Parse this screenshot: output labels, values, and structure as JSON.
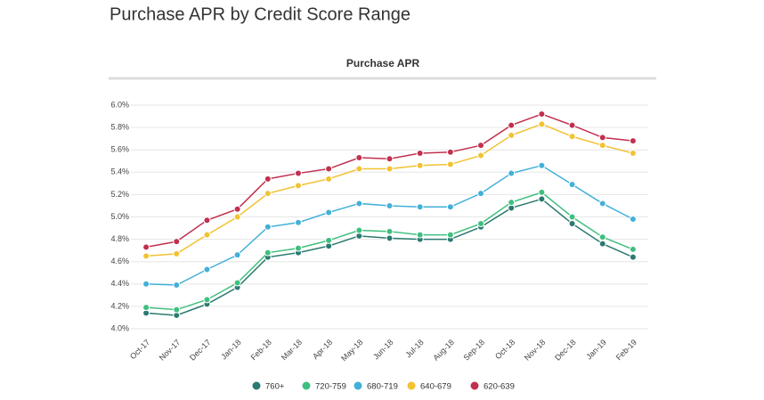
{
  "chart_data": {
    "type": "line",
    "title": "Purchase APR by Credit Score Range",
    "subtitle": "Purchase APR",
    "categories": [
      "Oct-17",
      "Nov-17",
      "Dec-17",
      "Jan-18",
      "Feb-18",
      "Mar-18",
      "Apr-18",
      "May-18",
      "Jun-18",
      "Jul-18",
      "Aug-18",
      "Sep-18",
      "Oct-18",
      "Nov-18",
      "Dec-18",
      "Jan-19",
      "Feb-19"
    ],
    "series": [
      {
        "name": "760+",
        "color": "#2b7a70",
        "values": [
          4.14,
          4.12,
          4.22,
          4.37,
          4.64,
          4.68,
          4.74,
          4.83,
          4.81,
          4.8,
          4.8,
          4.91,
          5.08,
          5.16,
          4.94,
          4.76,
          4.64
        ]
      },
      {
        "name": "720-759",
        "color": "#3fbf7f",
        "values": [
          4.19,
          4.17,
          4.26,
          4.41,
          4.68,
          4.72,
          4.79,
          4.88,
          4.87,
          4.84,
          4.84,
          4.94,
          5.13,
          5.22,
          5.0,
          4.82,
          4.71
        ]
      },
      {
        "name": "680-719",
        "color": "#42b0d8",
        "values": [
          4.4,
          4.39,
          4.53,
          4.66,
          4.91,
          4.95,
          5.04,
          5.12,
          5.1,
          5.09,
          5.09,
          5.21,
          5.39,
          5.46,
          5.29,
          5.12,
          4.98
        ]
      },
      {
        "name": "640-679",
        "color": "#f1c232",
        "values": [
          4.65,
          4.67,
          4.84,
          5.0,
          5.21,
          5.28,
          5.34,
          5.43,
          5.43,
          5.46,
          5.47,
          5.55,
          5.73,
          5.83,
          5.72,
          5.64,
          5.57
        ]
      },
      {
        "name": "620-639",
        "color": "#c2304f",
        "values": [
          4.73,
          4.78,
          4.97,
          5.07,
          5.34,
          5.39,
          5.43,
          5.53,
          5.52,
          5.57,
          5.58,
          5.64,
          5.82,
          5.92,
          5.82,
          5.71,
          5.68
        ]
      }
    ],
    "ylim": [
      4.0,
      6.0
    ],
    "yticks": [
      {
        "value": 4.0,
        "label": "4.0%"
      },
      {
        "value": 4.2,
        "label": "4.2%"
      },
      {
        "value": 4.4,
        "label": "4.4%"
      },
      {
        "value": 4.6,
        "label": "4.6%"
      },
      {
        "value": 4.8,
        "label": "4.8%"
      },
      {
        "value": 5.0,
        "label": "5.0%"
      },
      {
        "value": 5.2,
        "label": "5.2%"
      },
      {
        "value": 5.4,
        "label": "5.4%"
      },
      {
        "value": 5.6,
        "label": "5.6%"
      },
      {
        "value": 5.8,
        "label": "5.8%"
      },
      {
        "value": 6.0,
        "label": "6.0%"
      }
    ],
    "grid": true
  }
}
